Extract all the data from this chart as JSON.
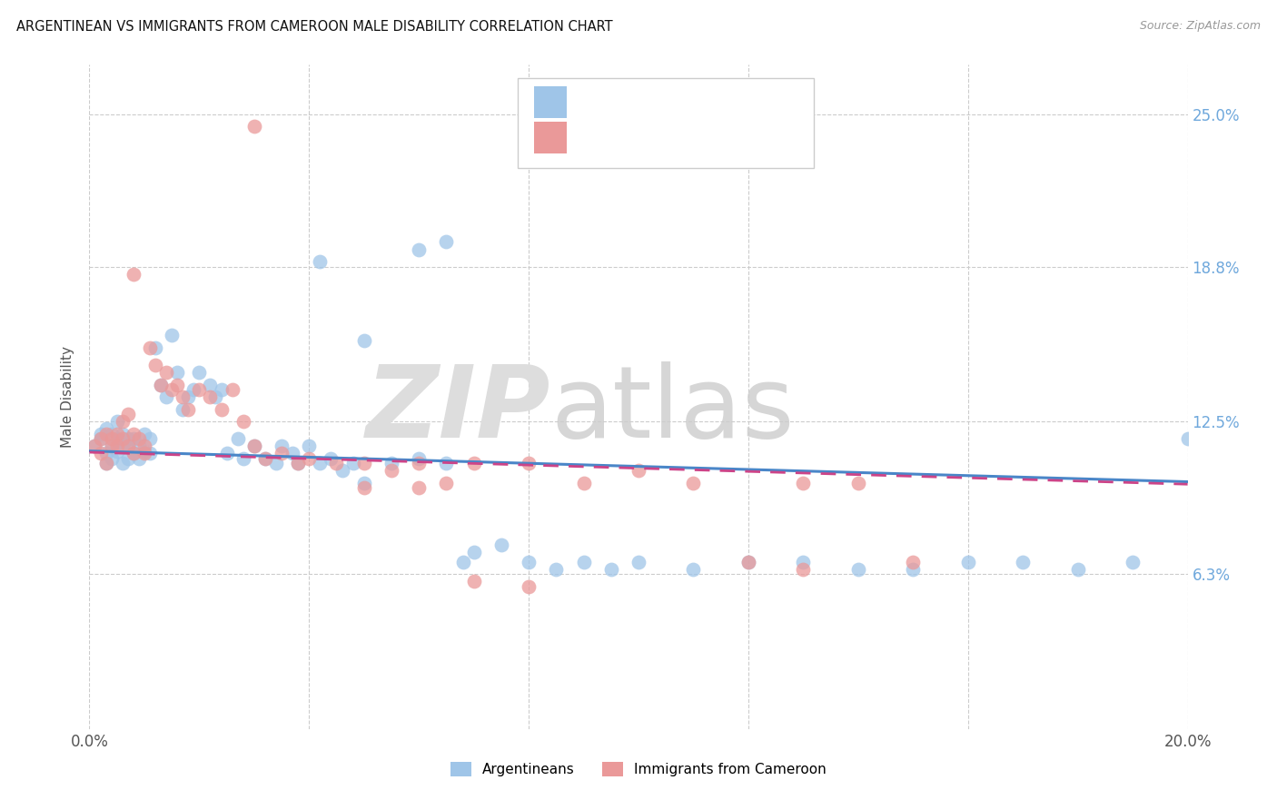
{
  "title": "ARGENTINEAN VS IMMIGRANTS FROM CAMEROON MALE DISABILITY CORRELATION CHART",
  "source": "Source: ZipAtlas.com",
  "ylabel": "Male Disability",
  "xlim": [
    0.0,
    0.2
  ],
  "ylim": [
    0.0,
    0.27
  ],
  "ytick_vals": [
    0.063,
    0.125,
    0.188,
    0.25
  ],
  "ytick_labels": [
    "6.3%",
    "12.5%",
    "18.8%",
    "25.0%"
  ],
  "xtick_vals": [
    0.0,
    0.04,
    0.08,
    0.12,
    0.16,
    0.2
  ],
  "xtick_labels": [
    "0.0%",
    "",
    "",
    "",
    "",
    "20.0%"
  ],
  "color_blue": "#9fc5e8",
  "color_pink": "#ea9999",
  "color_blue_line": "#4a86c8",
  "color_pink_line": "#cc4488",
  "color_rn": "#4a86c8",
  "color_label": "#666666",
  "argentinean_x": [
    0.001,
    0.002,
    0.002,
    0.003,
    0.003,
    0.003,
    0.004,
    0.004,
    0.004,
    0.005,
    0.005,
    0.005,
    0.006,
    0.006,
    0.006,
    0.007,
    0.007,
    0.007,
    0.008,
    0.008,
    0.009,
    0.009,
    0.01,
    0.01,
    0.011,
    0.011,
    0.012,
    0.013,
    0.014,
    0.015,
    0.016,
    0.017,
    0.018,
    0.019,
    0.02,
    0.022,
    0.023,
    0.024,
    0.025,
    0.027,
    0.028,
    0.03,
    0.032,
    0.034,
    0.035,
    0.037,
    0.038,
    0.04,
    0.042,
    0.044,
    0.046,
    0.048,
    0.05,
    0.055,
    0.06,
    0.065,
    0.068,
    0.07,
    0.075,
    0.08,
    0.085,
    0.09,
    0.095,
    0.1,
    0.11,
    0.12,
    0.13,
    0.14,
    0.15,
    0.16,
    0.17,
    0.18,
    0.19,
    0.2,
    0.06,
    0.065,
    0.042,
    0.05
  ],
  "argentinean_y": [
    0.115,
    0.118,
    0.12,
    0.108,
    0.112,
    0.122,
    0.11,
    0.115,
    0.12,
    0.113,
    0.118,
    0.125,
    0.108,
    0.115,
    0.12,
    0.11,
    0.115,
    0.118,
    0.112,
    0.118,
    0.115,
    0.11,
    0.12,
    0.113,
    0.118,
    0.112,
    0.155,
    0.14,
    0.135,
    0.16,
    0.145,
    0.13,
    0.135,
    0.138,
    0.145,
    0.14,
    0.135,
    0.138,
    0.112,
    0.118,
    0.11,
    0.115,
    0.11,
    0.108,
    0.115,
    0.112,
    0.108,
    0.115,
    0.108,
    0.11,
    0.105,
    0.108,
    0.1,
    0.108,
    0.11,
    0.108,
    0.068,
    0.072,
    0.075,
    0.068,
    0.065,
    0.068,
    0.065,
    0.068,
    0.065,
    0.068,
    0.068,
    0.065,
    0.065,
    0.068,
    0.068,
    0.065,
    0.068,
    0.118,
    0.195,
    0.198,
    0.19,
    0.158
  ],
  "cameroon_x": [
    0.001,
    0.002,
    0.002,
    0.003,
    0.003,
    0.004,
    0.004,
    0.005,
    0.005,
    0.006,
    0.006,
    0.007,
    0.007,
    0.008,
    0.008,
    0.009,
    0.01,
    0.01,
    0.011,
    0.012,
    0.013,
    0.014,
    0.015,
    0.016,
    0.017,
    0.018,
    0.02,
    0.022,
    0.024,
    0.026,
    0.028,
    0.03,
    0.032,
    0.035,
    0.038,
    0.04,
    0.045,
    0.05,
    0.055,
    0.06,
    0.065,
    0.07,
    0.08,
    0.09,
    0.1,
    0.11,
    0.12,
    0.13,
    0.14,
    0.15,
    0.03,
    0.008,
    0.13,
    0.05,
    0.06,
    0.07,
    0.08
  ],
  "cameroon_y": [
    0.115,
    0.118,
    0.112,
    0.12,
    0.108,
    0.115,
    0.118,
    0.12,
    0.115,
    0.125,
    0.118,
    0.128,
    0.115,
    0.12,
    0.112,
    0.118,
    0.115,
    0.112,
    0.155,
    0.148,
    0.14,
    0.145,
    0.138,
    0.14,
    0.135,
    0.13,
    0.138,
    0.135,
    0.13,
    0.138,
    0.125,
    0.115,
    0.11,
    0.112,
    0.108,
    0.11,
    0.108,
    0.108,
    0.105,
    0.108,
    0.1,
    0.108,
    0.108,
    0.1,
    0.105,
    0.1,
    0.068,
    0.1,
    0.1,
    0.068,
    0.245,
    0.185,
    0.065,
    0.098,
    0.098,
    0.06,
    0.058
  ]
}
